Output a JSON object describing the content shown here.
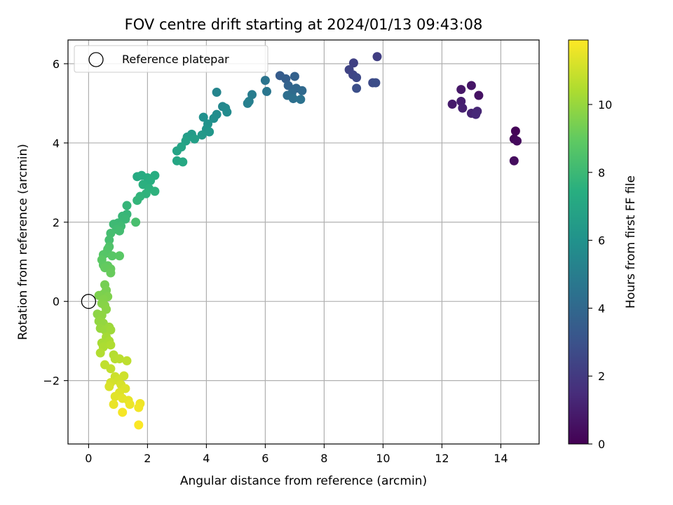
{
  "chart_data": {
    "type": "scatter",
    "title": "FOV centre drift starting at 2024/01/13 09:43:08",
    "xlabel": "Angular distance from reference (arcmin)",
    "ylabel": "Rotation from reference (arcmin)",
    "xlim": [
      -0.7,
      15.3
    ],
    "ylim": [
      -3.6,
      6.6
    ],
    "xticks": [
      0,
      2,
      4,
      6,
      8,
      10,
      12,
      14
    ],
    "yticks": [
      -2,
      0,
      2,
      4,
      6
    ],
    "xtick_labels": [
      "0",
      "2",
      "4",
      "6",
      "8",
      "10",
      "12",
      "14"
    ],
    "ytick_labels": [
      "−2",
      "0",
      "2",
      "4",
      "6"
    ],
    "grid": true,
    "colormap": "viridis",
    "colorbar": {
      "label": "Hours from first FF file",
      "range": [
        0,
        11.9
      ],
      "ticks": [
        0,
        2,
        4,
        6,
        8,
        10
      ],
      "tick_labels": [
        "0",
        "2",
        "4",
        "6",
        "8",
        "10"
      ]
    },
    "legend": {
      "position": "top-left",
      "entries": [
        {
          "label": "Reference platepar",
          "marker": "open-circle"
        }
      ]
    },
    "reference_point": {
      "x": 0,
      "y": 0
    },
    "points": [
      [
        14.5,
        4.3,
        0.1
      ],
      [
        14.45,
        4.1,
        0.2
      ],
      [
        14.55,
        4.05,
        0.3
      ],
      [
        14.45,
        3.55,
        0.4
      ],
      [
        13.25,
        5.2,
        0.6
      ],
      [
        13.0,
        5.45,
        0.7
      ],
      [
        12.65,
        5.35,
        0.8
      ],
      [
        12.35,
        4.98,
        0.9
      ],
      [
        12.65,
        5.05,
        1.0
      ],
      [
        12.7,
        4.88,
        1.1
      ],
      [
        13.0,
        4.75,
        1.2
      ],
      [
        13.2,
        4.8,
        1.3
      ],
      [
        13.15,
        4.72,
        1.4
      ],
      [
        9.8,
        6.18,
        2.2
      ],
      [
        9.0,
        6.02,
        2.3
      ],
      [
        8.85,
        5.85,
        2.4
      ],
      [
        8.98,
        5.72,
        2.5
      ],
      [
        9.1,
        5.65,
        2.6
      ],
      [
        9.65,
        5.52,
        2.7
      ],
      [
        9.75,
        5.52,
        2.8
      ],
      [
        9.1,
        5.38,
        2.9
      ],
      [
        6.5,
        5.7,
        3.5
      ],
      [
        6.7,
        5.62,
        3.6
      ],
      [
        7.0,
        5.68,
        3.7
      ],
      [
        6.78,
        5.45,
        3.8
      ],
      [
        6.95,
        5.35,
        3.9
      ],
      [
        7.05,
        5.38,
        4.0
      ],
      [
        7.25,
        5.32,
        4.1
      ],
      [
        6.9,
        5.25,
        4.2
      ],
      [
        6.75,
        5.2,
        4.3
      ],
      [
        6.95,
        5.12,
        4.4
      ],
      [
        7.2,
        5.1,
        4.5
      ],
      [
        6.0,
        5.58,
        4.6
      ],
      [
        6.05,
        5.3,
        4.7
      ],
      [
        5.55,
        5.22,
        5.0
      ],
      [
        5.45,
        5.05,
        5.1
      ],
      [
        5.4,
        5.0,
        5.2
      ],
      [
        4.35,
        5.28,
        5.4
      ],
      [
        4.55,
        4.92,
        5.5
      ],
      [
        4.65,
        4.88,
        5.6
      ],
      [
        4.7,
        4.78,
        5.7
      ],
      [
        4.35,
        4.72,
        5.8
      ],
      [
        4.25,
        4.62,
        5.9
      ],
      [
        3.9,
        4.65,
        6.0
      ],
      [
        4.05,
        4.48,
        6.1
      ],
      [
        4.0,
        4.35,
        6.2
      ],
      [
        4.1,
        4.28,
        6.3
      ],
      [
        3.85,
        4.2,
        6.4
      ],
      [
        3.5,
        4.22,
        6.5
      ],
      [
        3.35,
        4.15,
        6.6
      ],
      [
        3.6,
        4.1,
        6.7
      ],
      [
        3.3,
        4.05,
        6.8
      ],
      [
        3.0,
        3.8,
        6.9
      ],
      [
        3.15,
        3.9,
        7.0
      ],
      [
        3.0,
        3.55,
        7.1
      ],
      [
        3.2,
        3.52,
        7.2
      ],
      [
        1.65,
        3.15,
        7.3
      ],
      [
        1.8,
        3.18,
        7.35
      ],
      [
        2.0,
        3.12,
        7.4
      ],
      [
        2.25,
        3.18,
        7.45
      ],
      [
        2.1,
        3.05,
        7.5
      ],
      [
        1.85,
        2.95,
        7.55
      ],
      [
        2.05,
        2.85,
        7.6
      ],
      [
        2.25,
        2.78,
        7.65
      ],
      [
        1.95,
        2.72,
        7.7
      ],
      [
        1.75,
        2.65,
        7.75
      ],
      [
        1.65,
        2.55,
        7.8
      ],
      [
        1.3,
        2.42,
        7.85
      ],
      [
        1.3,
        2.2,
        7.9
      ],
      [
        1.15,
        2.15,
        7.95
      ],
      [
        1.25,
        2.08,
        8.0
      ],
      [
        1.0,
        1.98,
        8.05
      ],
      [
        0.85,
        1.95,
        8.1
      ],
      [
        1.1,
        1.9,
        8.15
      ],
      [
        0.95,
        1.82,
        8.2
      ],
      [
        1.05,
        1.78,
        8.25
      ],
      [
        0.75,
        1.72,
        8.3
      ],
      [
        0.7,
        1.55,
        8.35
      ],
      [
        1.6,
        2.0,
        8.4
      ],
      [
        0.7,
        1.38,
        8.6
      ],
      [
        0.65,
        1.32,
        8.65
      ],
      [
        0.6,
        1.22,
        8.7
      ],
      [
        0.5,
        1.18,
        8.75
      ],
      [
        0.8,
        1.15,
        8.8
      ],
      [
        1.05,
        1.15,
        8.85
      ],
      [
        0.45,
        1.05,
        8.9
      ],
      [
        0.5,
        0.92,
        8.95
      ],
      [
        0.65,
        0.9,
        9.0
      ],
      [
        0.55,
        0.85,
        9.05
      ],
      [
        0.75,
        0.82,
        9.1
      ],
      [
        0.75,
        0.72,
        9.15
      ],
      [
        0.55,
        0.42,
        9.4
      ],
      [
        0.6,
        0.28,
        9.45
      ],
      [
        0.5,
        0.18,
        9.5
      ],
      [
        0.35,
        0.15,
        9.55
      ],
      [
        0.65,
        0.12,
        9.6
      ],
      [
        0.5,
        0.05,
        9.65
      ],
      [
        0.45,
        -0.05,
        9.7
      ],
      [
        0.55,
        -0.1,
        9.75
      ],
      [
        0.6,
        -0.2,
        9.8
      ],
      [
        0.3,
        -0.32,
        9.85
      ],
      [
        0.45,
        -0.35,
        9.9
      ],
      [
        0.35,
        -0.5,
        9.95
      ],
      [
        0.5,
        -0.55,
        10.0
      ],
      [
        0.4,
        -0.68,
        10.05
      ],
      [
        0.55,
        -0.72,
        10.1
      ],
      [
        0.7,
        -0.65,
        10.15
      ],
      [
        0.75,
        -0.72,
        10.2
      ],
      [
        0.6,
        -0.9,
        10.3
      ],
      [
        0.45,
        -1.05,
        10.35
      ],
      [
        0.7,
        -1.0,
        10.4
      ],
      [
        0.5,
        -1.15,
        10.45
      ],
      [
        0.75,
        -1.1,
        10.5
      ],
      [
        0.4,
        -1.3,
        10.55
      ],
      [
        0.85,
        -1.35,
        10.6
      ],
      [
        0.9,
        -1.45,
        10.65
      ],
      [
        1.05,
        -1.45,
        10.7
      ],
      [
        1.3,
        -1.5,
        10.75
      ],
      [
        0.55,
        -1.6,
        10.8
      ],
      [
        0.75,
        -1.7,
        10.85
      ],
      [
        0.9,
        -1.9,
        11.0
      ],
      [
        1.2,
        -1.88,
        11.05
      ],
      [
        1.0,
        -2.0,
        11.1
      ],
      [
        0.75,
        -2.05,
        11.15
      ],
      [
        1.1,
        -2.1,
        11.2
      ],
      [
        0.7,
        -2.15,
        11.25
      ],
      [
        1.25,
        -2.2,
        11.3
      ],
      [
        1.05,
        -2.3,
        11.35
      ],
      [
        0.9,
        -2.4,
        11.4
      ],
      [
        1.15,
        -2.45,
        11.45
      ],
      [
        1.35,
        -2.5,
        11.5
      ],
      [
        0.85,
        -2.6,
        11.55
      ],
      [
        1.4,
        -2.6,
        11.6
      ],
      [
        1.75,
        -2.58,
        11.65
      ],
      [
        1.7,
        -2.68,
        11.7
      ],
      [
        1.15,
        -2.8,
        11.75
      ],
      [
        1.7,
        -3.12,
        11.85
      ]
    ]
  }
}
